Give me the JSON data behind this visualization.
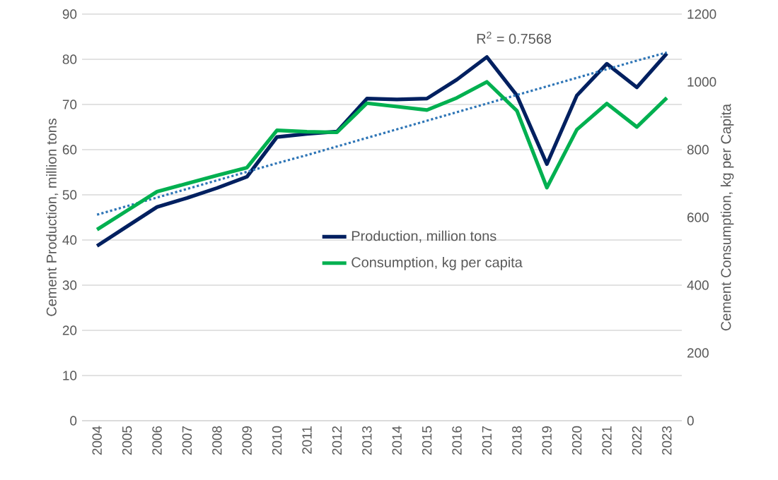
{
  "chart_data": {
    "type": "line",
    "ylabel": "Cement Production, million tons",
    "y2label": "Cement Consumption, kg per Capita",
    "categories": [
      "2004",
      "2005",
      "2006",
      "2007",
      "2008",
      "2009",
      "2010",
      "2011",
      "2012",
      "2013",
      "2014",
      "2015",
      "2016",
      "2017",
      "2018",
      "2019",
      "2020",
      "2021",
      "2022",
      "2023"
    ],
    "series": [
      {
        "name": "Production, million tons",
        "color": "#002060",
        "values": [
          38.7,
          43,
          47.3,
          49.3,
          51.5,
          54,
          62.8,
          63.5,
          64,
          71.3,
          71.1,
          71.3,
          75.5,
          80.5,
          72,
          56.8,
          72,
          79,
          73.8,
          81.3
        ]
      },
      {
        "name": "Consumption, kg per capita",
        "color": "#00b050",
        "axis": "y2",
        "values": [
          564,
          620,
          676,
          700,
          724,
          747,
          857,
          853,
          851,
          937,
          927,
          917,
          953,
          1000,
          915,
          688,
          859,
          936,
          867,
          953
        ]
      },
      {
        "type": "line",
        "color": "#2e75b6",
        "line_style": "dotted",
        "values": [
          45.6,
          47.5,
          49.4,
          51.3,
          53.2,
          55.1,
          57.0,
          58.8,
          60.7,
          62.6,
          64.5,
          66.4,
          68.3,
          70.2,
          72.1,
          74.0,
          75.9,
          77.8,
          79.7,
          81.5
        ]
      }
    ],
    "ylim": [
      0,
      90
    ],
    "yticks": [
      0,
      10,
      20,
      30,
      40,
      50,
      60,
      70,
      80,
      90
    ],
    "y2lim": [
      0,
      1200
    ],
    "y2ticks": [
      0,
      200,
      400,
      600,
      800,
      1000,
      1200
    ],
    "annotations": [
      "R$^{2}$ = 0.7568"
    ],
    "grid": "y",
    "legend": "center",
    "marker": "none"
  }
}
